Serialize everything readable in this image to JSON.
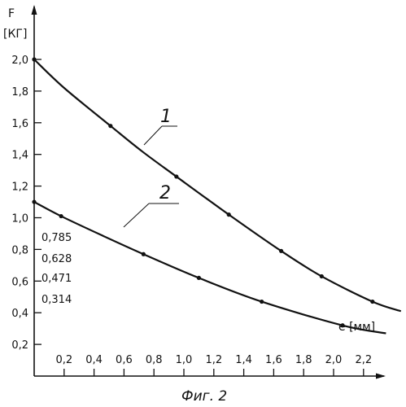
{
  "chart_data": {
    "type": "line",
    "y_axis_label": "F",
    "y_axis_unit": "[КГ]",
    "x_axis_label": "e [мм]",
    "xlim": [
      0,
      2.5
    ],
    "ylim": [
      0,
      2.2
    ],
    "x_ticks": [
      "0,2",
      "0,4",
      "0,6",
      "0,8",
      "1,0",
      "1,2",
      "1,4",
      "1,6",
      "1,8",
      "2,0",
      "2,2"
    ],
    "x_tick_values": [
      0.2,
      0.4,
      0.6,
      0.8,
      1.0,
      1.2,
      1.4,
      1.6,
      1.8,
      2.0,
      2.2
    ],
    "y_ticks": [
      "0,2",
      "0,4",
      "0,6",
      "0,8",
      "1,0",
      "1,2",
      "1,4",
      "1,6",
      "1,8",
      "2,0"
    ],
    "y_tick_values": [
      0.2,
      0.4,
      0.6,
      0.8,
      1.0,
      1.2,
      1.4,
      1.6,
      1.8,
      2.0
    ],
    "annotations": [
      "0,785",
      "0,628",
      "0,471",
      "0,314"
    ],
    "series": [
      {
        "name": "1",
        "points": [
          [
            0,
            2.0
          ],
          [
            0.51,
            1.58
          ],
          [
            0.95,
            1.26
          ],
          [
            1.3,
            1.02
          ],
          [
            1.65,
            0.79
          ],
          [
            1.92,
            0.63
          ],
          [
            2.26,
            0.47
          ]
        ],
        "curve": [
          [
            0,
            2.0
          ],
          [
            0.2,
            1.82
          ],
          [
            0.51,
            1.58
          ],
          [
            0.72,
            1.42
          ],
          [
            0.95,
            1.26
          ],
          [
            1.3,
            1.02
          ],
          [
            1.65,
            0.79
          ],
          [
            1.92,
            0.63
          ],
          [
            2.26,
            0.47
          ],
          [
            2.45,
            0.41
          ]
        ]
      },
      {
        "name": "2",
        "points": [
          [
            0,
            1.1
          ],
          [
            0.18,
            1.01
          ],
          [
            0.73,
            0.77
          ],
          [
            1.1,
            0.62
          ],
          [
            1.52,
            0.47
          ],
          [
            2.06,
            0.32
          ]
        ],
        "curve": [
          [
            0,
            1.1
          ],
          [
            0.18,
            1.01
          ],
          [
            0.45,
            0.89
          ],
          [
            0.73,
            0.77
          ],
          [
            1.1,
            0.62
          ],
          [
            1.52,
            0.47
          ],
          [
            2.06,
            0.32
          ],
          [
            2.35,
            0.27
          ]
        ]
      }
    ]
  },
  "caption": "Фиг. 2"
}
